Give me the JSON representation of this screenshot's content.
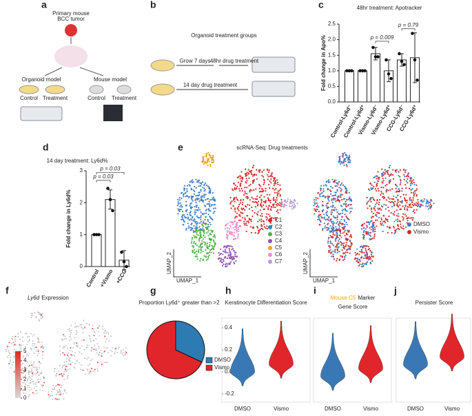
{
  "panel_labels": [
    "a",
    "b",
    "c",
    "d",
    "e",
    "f",
    "g",
    "h",
    "i",
    "j"
  ],
  "diagram_a": {
    "tumor": [
      "Primary mouse",
      "BCC tumor"
    ],
    "organoid": "Organoid model",
    "mouse": "Mouse model",
    "groups": [
      "Control",
      "Treatment",
      "Control",
      "Treatment"
    ]
  },
  "diagram_b": {
    "title": "Organoid treatment groups",
    "steps": [
      "Grow 7 days",
      "48hr drug treatment",
      "14 day drug treatment"
    ]
  },
  "umap": {
    "title": "scRNA-Seq: Drug treatments",
    "xlabel": "UMAP_1",
    "ylabel": "UMAP_2",
    "clusters": [
      {
        "name": "C1",
        "color": "#d62728"
      },
      {
        "name": "C2",
        "color": "#3b7dc4"
      },
      {
        "name": "C3",
        "color": "#4daf4a"
      },
      {
        "name": "C4",
        "color": "#8e4fb0"
      },
      {
        "name": "C5",
        "color": "#f0a30a"
      },
      {
        "name": "C6",
        "color": "#f08fc8"
      },
      {
        "name": "C7",
        "color": "#b89ad8"
      }
    ],
    "treatments": [
      {
        "name": "DMSO",
        "color": "#3b7dc4"
      },
      {
        "name": "Vismo",
        "color": "#d62728"
      }
    ]
  },
  "feature": {
    "gene": "Ly6d",
    "title": "Expression",
    "colorbar_ticks": [
      0,
      1,
      2,
      3,
      4,
      5
    ]
  },
  "chart_data": [
    {
      "type": "bar",
      "title": "48hr treatment: Apotracker",
      "ylabel": "Fold change in Apo%",
      "categories": [
        "Control-Ly6d⁻",
        "Control-Ly6d⁺",
        "Vismo-Ly6d⁻",
        "Vismo-Ly6d⁺",
        "CCG-Ly6d⁻",
        "CCG-Ly6d⁺"
      ],
      "values": [
        1.0,
        1.0,
        1.55,
        1.0,
        1.35,
        1.42
      ],
      "errors": [
        0,
        0,
        0.2,
        0.35,
        0.2,
        0.8
      ],
      "points": [
        [
          1,
          1,
          1
        ],
        [
          1,
          1,
          1
        ],
        [
          1.75,
          1.45,
          1.45
        ],
        [
          1.35,
          0.9,
          0.75
        ],
        [
          1.55,
          1.3,
          1.2
        ],
        [
          2.2,
          1.35,
          0.7
        ]
      ],
      "ylim": [
        0,
        2.5
      ],
      "yticks": [
        {
          "value": 0,
          "label": "0.0"
        },
        0.5,
        {
          "value": 1,
          "label": "1.0"
        },
        1.5,
        {
          "value": 2,
          "label": "2.0"
        },
        2.5
      ],
      "annotations": [
        "p = 0.009",
        "p = 0.79"
      ]
    },
    {
      "type": "bar",
      "title": "14 day treatment: Ly6d%",
      "ylabel": "Fold change in Ly6d%",
      "categories": [
        "Control",
        "+Vismo",
        "+CCG"
      ],
      "values": [
        1.0,
        2.1,
        0.2
      ],
      "errors": [
        0,
        0.3,
        0.3
      ],
      "points": [
        [
          1,
          1,
          1
        ],
        [
          2.45,
          2.1,
          1.75
        ],
        [
          0.45,
          0.15,
          0.0
        ]
      ],
      "ylim": [
        0,
        3
      ],
      "yticks": [
        0,
        1,
        2,
        3
      ],
      "annotations": [
        "p = 0.03",
        "p = 0.03"
      ]
    },
    {
      "type": "pie",
      "title": "Proportion Ly6d⁺ greater than >2",
      "categories": [
        "DMSO",
        "Vismo"
      ],
      "values": [
        32,
        68
      ],
      "colors": [
        "#2e7bb4",
        "#e0262b"
      ]
    },
    {
      "type": "violin",
      "title": "Keratinocyte Differentiation Score",
      "categories": [
        "DMSO",
        "Vismo"
      ],
      "values": [
        0.0,
        0.07
      ],
      "colors": [
        "#3a78b5",
        "#e0262b"
      ],
      "ylim": [
        -0.25,
        0.45
      ],
      "yticks": [
        -0.2,
        {
          "value": 0,
          "label": "0.0"
        },
        0.2,
        0.4
      ]
    },
    {
      "type": "violin",
      "title_highlight": "Mouse-C5",
      "title": "Marker",
      "title_line2": "Gene Score",
      "categories": [
        "DMSO",
        "Vismo"
      ],
      "values": [
        0.3,
        0.4
      ],
      "colors": [
        "#3a78b5",
        "#e0262b"
      ],
      "ylim": [
        0,
        1
      ]
    },
    {
      "type": "violin",
      "title": "Persister Score",
      "categories": [
        "DMSO",
        "Vismo"
      ],
      "values": [
        0.45,
        0.55
      ],
      "colors": [
        "#3a78b5",
        "#e0262b"
      ],
      "ylim": [
        0,
        1
      ]
    }
  ]
}
